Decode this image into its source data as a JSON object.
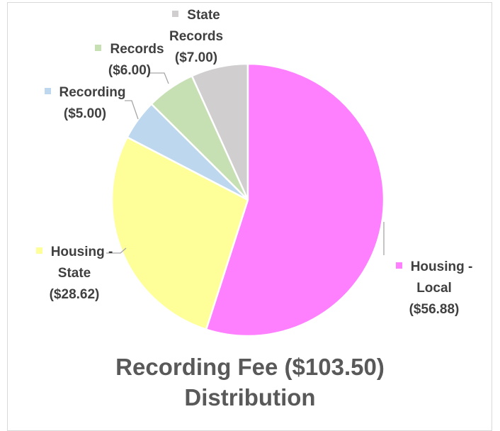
{
  "chart_data": {
    "type": "pie",
    "title": "Recording Fee ($103.50) Distribution",
    "categories": [
      "Housing - Local",
      "Housing - State",
      "Recording",
      "Records",
      "State Records"
    ],
    "values": [
      56.88,
      28.62,
      5.0,
      6.0,
      7.0
    ],
    "value_labels": [
      "($56.88)",
      "($28.62)",
      "($5.00)",
      "($6.00)",
      "($7.00)"
    ],
    "colors": [
      "#ff80ff",
      "#ffff99",
      "#bdd7ee",
      "#c6e0b4",
      "#d0cece"
    ]
  }
}
